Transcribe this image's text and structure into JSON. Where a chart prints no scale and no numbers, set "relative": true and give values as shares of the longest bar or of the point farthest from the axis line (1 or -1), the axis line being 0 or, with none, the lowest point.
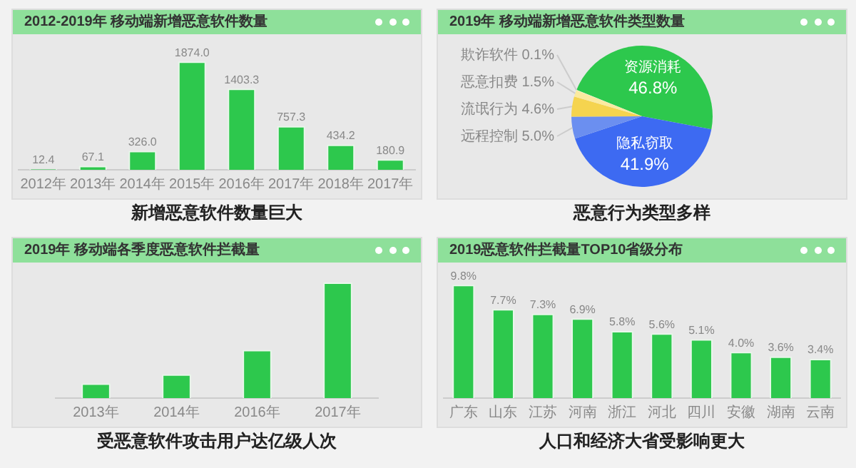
{
  "chart_data": [
    {
      "type": "bar",
      "title": "2012-2019年 移动端新增恶意软件数量",
      "categories": [
        "2012年",
        "2013年",
        "2014年",
        "2015年",
        "2016年",
        "2017年",
        "2018年",
        "2017年"
      ],
      "values": [
        12.4,
        67.1,
        326.0,
        1874.0,
        1403.3,
        757.3,
        434.2,
        180.9
      ],
      "value_labels": [
        "12.4",
        "67.1",
        "326.0",
        "1874.0",
        "1403.3",
        "757.3",
        "434.2",
        "180.9"
      ],
      "color": "#2dc84d",
      "tick_labels": "x",
      "annotations": [
        "新增恶意软件数量巨大"
      ]
    },
    {
      "type": "pie",
      "title": "2019年 移动端新增恶意软件类型数量",
      "categories": [
        "资源消耗",
        "隐私窃取",
        "远程控制",
        "流氓行为",
        "恶意扣费",
        "欺诈软件"
      ],
      "values": [
        46.8,
        41.9,
        5.0,
        4.6,
        1.5,
        0.1
      ],
      "value_labels": [
        "46.8%",
        "41.9%",
        "5.0%",
        "4.6%",
        "1.5%",
        "0.1%"
      ],
      "colors": [
        "#2dc84d",
        "#3d6af2",
        "#6b8ff0",
        "#f5d44f",
        "#fbeaa0",
        "#fdf6d8"
      ],
      "annotations": [
        "恶意行为类型多样"
      ]
    },
    {
      "type": "bar",
      "title": "2019年 移动端各季度恶意软件拦截量",
      "categories": [
        "2013年",
        "2014年",
        "2016年",
        "2017年"
      ],
      "values": [
        0.126,
        0.206,
        0.417,
        1
      ],
      "relative": true,
      "color": "#2dc84d",
      "annotations": [
        "受恶意软件攻击用户达亿级人次"
      ]
    },
    {
      "type": "bar",
      "title": "2019恶意软件拦截量TOP10省级分布",
      "categories": [
        "广东",
        "山东",
        "江苏",
        "河南",
        "浙江",
        "河北",
        "四川",
        "安徽",
        "湖南",
        "云南"
      ],
      "values": [
        9.8,
        7.7,
        7.3,
        6.9,
        5.8,
        5.6,
        5.1,
        4.0,
        3.6,
        3.4
      ],
      "value_labels": [
        "9.8%",
        "7.7%",
        "7.3%",
        "6.9%",
        "5.8%",
        "5.6%",
        "5.1%",
        "4.0%",
        "3.6%",
        "3.4%"
      ],
      "color": "#2dc84d",
      "tick_labels": "x",
      "annotations": [
        "人口和经济大省受影响更大"
      ]
    }
  ]
}
